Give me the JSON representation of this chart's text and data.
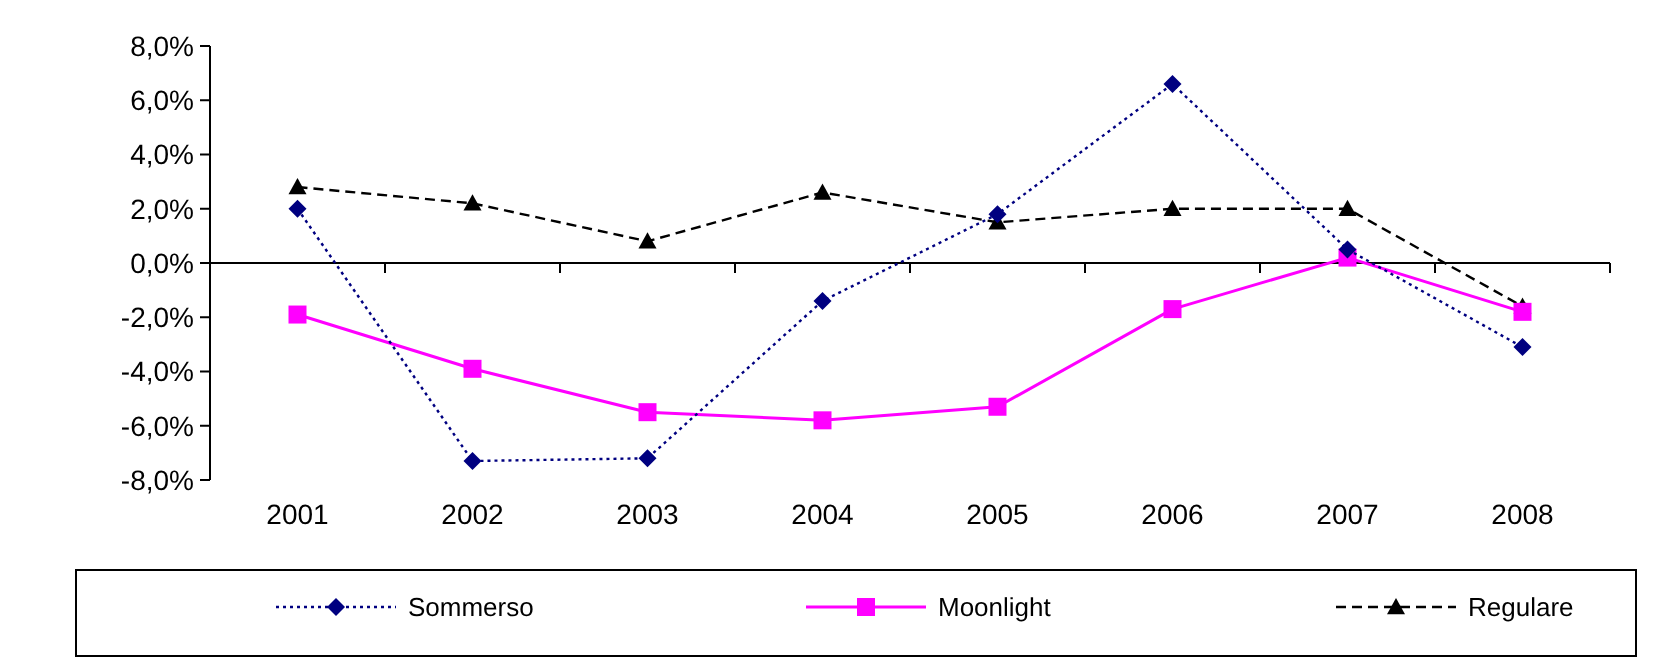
{
  "chart_data": {
    "type": "line",
    "categories": [
      "2001",
      "2002",
      "2003",
      "2004",
      "2005",
      "2006",
      "2007",
      "2008"
    ],
    "series": [
      {
        "name": "Sommerso",
        "color": "#000080",
        "marker": "diamond",
        "line_style": "dotted",
        "values": [
          2.0,
          -7.3,
          -7.2,
          -1.4,
          1.8,
          6.6,
          0.5,
          -3.1
        ]
      },
      {
        "name": "Moonlight",
        "color": "#ff00ff",
        "marker": "square",
        "line_style": "solid",
        "values": [
          -1.9,
          -3.9,
          -5.5,
          -5.8,
          -5.3,
          -1.7,
          0.2,
          -1.8
        ]
      },
      {
        "name": "Regulare",
        "color": "#000000",
        "marker": "triangle",
        "line_style": "dashed",
        "values": [
          2.8,
          2.2,
          0.8,
          2.6,
          1.5,
          2.0,
          2.0,
          -1.6
        ]
      }
    ],
    "ylim": [
      -8,
      8
    ],
    "yticks": [
      {
        "value": -8,
        "label": "-8,0%"
      },
      {
        "value": -6,
        "label": "-6,0%"
      },
      {
        "value": -4,
        "label": "-4,0%"
      },
      {
        "value": -2,
        "label": "-2,0%"
      },
      {
        "value": 0,
        "label": "0,0%"
      },
      {
        "value": 2,
        "label": "2,0%"
      },
      {
        "value": 4,
        "label": "4,0%"
      },
      {
        "value": 6,
        "label": "6,0%"
      },
      {
        "value": 8,
        "label": "8,0%"
      }
    ],
    "legend": "bottom"
  }
}
